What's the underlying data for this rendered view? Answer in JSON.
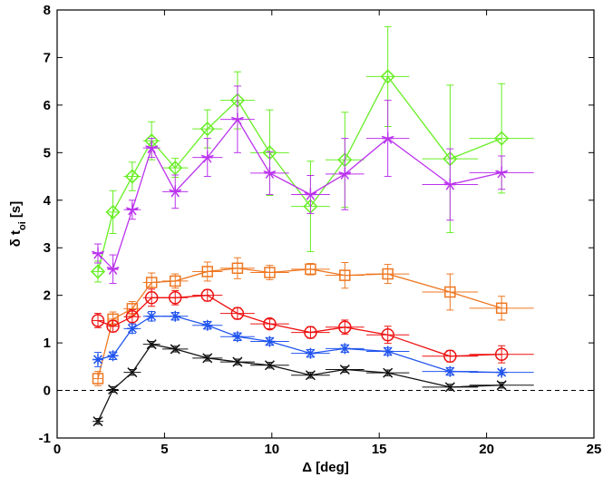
{
  "chart_data": {
    "type": "line",
    "title": "",
    "xlabel": "Δ [deg]",
    "ylabel_main": "δ t",
    "ylabel_sub": "oi",
    "ylabel_unit": " [s]",
    "xlim": [
      0,
      25
    ],
    "ylim": [
      -1,
      8
    ],
    "xticks": [
      0,
      5,
      10,
      15,
      20,
      25
    ],
    "yticks": [
      -1,
      0,
      1,
      2,
      3,
      4,
      5,
      6,
      7,
      8
    ],
    "grid": false,
    "reference_line": {
      "y": 0,
      "style": "dashed",
      "color": "#000000"
    },
    "series": [
      {
        "name": "green-diamond",
        "color": "#66ee22",
        "marker": "diamond",
        "x": [
          1.9,
          2.6,
          3.5,
          4.4,
          5.5,
          7.0,
          8.4,
          9.9,
          11.8,
          13.4,
          15.4,
          18.3,
          20.7
        ],
        "y": [
          2.5,
          3.75,
          4.5,
          5.25,
          4.68,
          5.5,
          6.1,
          5.0,
          3.87,
          4.85,
          6.6,
          4.87,
          5.3
        ],
        "xerr": [
          0.25,
          0.25,
          0.4,
          0.4,
          0.6,
          0.7,
          0.8,
          0.9,
          0.9,
          0.9,
          1.0,
          1.3,
          1.5
        ],
        "yerr": [
          0.22,
          0.45,
          0.3,
          0.4,
          0.2,
          0.4,
          0.6,
          0.9,
          0.95,
          1.0,
          1.05,
          1.55,
          1.15
        ]
      },
      {
        "name": "magenta-star",
        "color": "#bb33ee",
        "marker": "star",
        "x": [
          1.9,
          2.6,
          3.5,
          4.4,
          5.5,
          7.0,
          8.4,
          9.9,
          11.8,
          13.4,
          15.4,
          18.3,
          20.7
        ],
        "y": [
          2.88,
          2.55,
          3.8,
          5.1,
          4.18,
          4.9,
          5.7,
          4.57,
          4.12,
          4.55,
          5.3,
          4.33,
          4.58
        ],
        "xerr": [
          0.25,
          0.25,
          0.4,
          0.4,
          0.6,
          0.7,
          0.8,
          0.9,
          0.9,
          0.9,
          1.0,
          1.3,
          1.5
        ],
        "yerr": [
          0.2,
          0.3,
          0.2,
          0.2,
          0.35,
          0.4,
          0.7,
          0.45,
          0.4,
          0.75,
          0.8,
          0.75,
          0.35
        ]
      },
      {
        "name": "orange-square",
        "color": "#ee7722",
        "marker": "square",
        "x": [
          1.9,
          2.6,
          3.5,
          4.4,
          5.5,
          7.0,
          8.4,
          9.9,
          11.8,
          13.4,
          15.4,
          18.3,
          20.7
        ],
        "y": [
          0.25,
          1.5,
          1.72,
          2.27,
          2.3,
          2.5,
          2.57,
          2.48,
          2.55,
          2.42,
          2.45,
          2.07,
          1.73
        ],
        "xerr": [
          0.2,
          0.25,
          0.4,
          0.4,
          0.6,
          0.7,
          0.8,
          0.9,
          0.9,
          0.9,
          1.0,
          1.3,
          1.5
        ],
        "yerr": [
          0.15,
          0.15,
          0.15,
          0.2,
          0.15,
          0.2,
          0.22,
          0.15,
          0.12,
          0.27,
          0.2,
          0.38,
          0.25
        ]
      },
      {
        "name": "red-circle",
        "color": "#ee1111",
        "marker": "circle",
        "x": [
          1.9,
          2.6,
          3.5,
          4.4,
          5.5,
          7.0,
          8.4,
          9.9,
          11.8,
          13.4,
          15.4,
          18.3,
          20.7
        ],
        "y": [
          1.47,
          1.35,
          1.55,
          1.95,
          1.95,
          2.0,
          1.62,
          1.4,
          1.22,
          1.33,
          1.17,
          0.72,
          0.76
        ],
        "xerr": [
          0.25,
          0.25,
          0.4,
          0.4,
          0.6,
          0.7,
          0.8,
          0.9,
          0.9,
          0.9,
          1.0,
          1.3,
          1.5
        ],
        "yerr": [
          0.15,
          0.12,
          0.15,
          0.18,
          0.15,
          0.12,
          0.12,
          0.1,
          0.12,
          0.15,
          0.18,
          0.12,
          0.18
        ]
      },
      {
        "name": "blue-asterisk",
        "color": "#2255ee",
        "marker": "asterisk",
        "x": [
          1.9,
          2.6,
          3.5,
          4.4,
          5.5,
          7.0,
          8.4,
          9.9,
          11.8,
          13.4,
          15.4,
          18.3,
          20.7
        ],
        "y": [
          0.65,
          0.73,
          1.3,
          1.56,
          1.56,
          1.37,
          1.13,
          1.03,
          0.78,
          0.88,
          0.82,
          0.4,
          0.38
        ],
        "xerr": [
          0.25,
          0.25,
          0.4,
          0.4,
          0.6,
          0.7,
          0.8,
          0.9,
          0.9,
          0.9,
          1.0,
          1.3,
          1.5
        ],
        "yerr": [
          0.15,
          0.08,
          0.1,
          0.1,
          0.08,
          0.08,
          0.08,
          0.08,
          0.08,
          0.08,
          0.08,
          0.08,
          0.05
        ]
      },
      {
        "name": "black-x",
        "color": "#111111",
        "marker": "x",
        "x": [
          1.9,
          2.6,
          3.5,
          4.4,
          5.5,
          7.0,
          8.4,
          9.9,
          11.8,
          13.4,
          15.4,
          18.3,
          20.7
        ],
        "y": [
          -0.65,
          0.02,
          0.38,
          0.97,
          0.87,
          0.68,
          0.6,
          0.53,
          0.32,
          0.44,
          0.37,
          0.07,
          0.11
        ],
        "xerr": [
          0.25,
          0.25,
          0.4,
          0.4,
          0.6,
          0.7,
          0.8,
          0.9,
          0.9,
          0.9,
          1.0,
          1.3,
          1.5
        ],
        "yerr": [
          0.06,
          0.06,
          0.06,
          0.06,
          0.06,
          0.06,
          0.06,
          0.06,
          0.06,
          0.06,
          0.06,
          0.06,
          0.06
        ]
      }
    ]
  }
}
